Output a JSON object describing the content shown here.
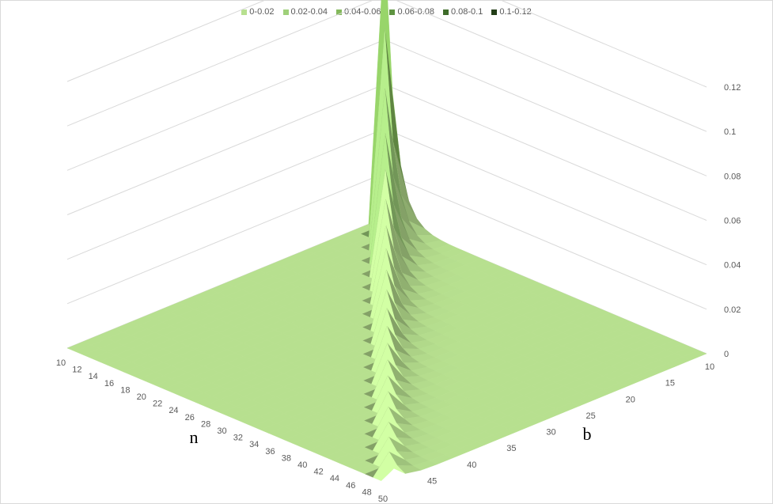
{
  "chart_data": {
    "type": "surface",
    "title": "",
    "xlabel": "n",
    "ylabel": "b",
    "zlabel": "",
    "x_ticks": [
      "10",
      "12",
      "14",
      "16",
      "18",
      "20",
      "22",
      "24",
      "26",
      "28",
      "30",
      "32",
      "34",
      "36",
      "38",
      "40",
      "42",
      "44",
      "46",
      "48",
      "50"
    ],
    "y_ticks": [
      "10",
      "15",
      "20",
      "25",
      "30",
      "35",
      "40",
      "45"
    ],
    "z_ticks": [
      "0",
      "0.02",
      "0.04",
      "0.06",
      "0.08",
      "0.1",
      "0.12"
    ],
    "zlim": [
      0,
      0.12
    ],
    "n_range": [
      10,
      50
    ],
    "b_range": [
      10,
      50
    ],
    "grid": true,
    "legend_position": "top",
    "legend": [
      {
        "label": "0-0.02",
        "color": "#b7e08f"
      },
      {
        "label": "0.02-0.04",
        "color": "#9fd07a"
      },
      {
        "label": "0.04-0.06",
        "color": "#84b95c"
      },
      {
        "label": "0.06-0.08",
        "color": "#5f9441"
      },
      {
        "label": "0.08-0.1",
        "color": "#3f6c2a"
      },
      {
        "label": "0.1-0.12",
        "color": "#233d17"
      }
    ],
    "series": [
      {
        "b": 10,
        "peak": 0.124
      },
      {
        "b": 12,
        "peak": 0.103
      },
      {
        "b": 14,
        "peak": 0.089
      },
      {
        "b": 16,
        "peak": 0.078
      },
      {
        "b": 18,
        "peak": 0.069
      },
      {
        "b": 20,
        "peak": 0.062
      },
      {
        "b": 22,
        "peak": 0.056
      },
      {
        "b": 24,
        "peak": 0.052
      },
      {
        "b": 26,
        "peak": 0.048
      },
      {
        "b": 28,
        "peak": 0.044
      },
      {
        "b": 30,
        "peak": 0.041
      },
      {
        "b": 32,
        "peak": 0.039
      },
      {
        "b": 34,
        "peak": 0.036
      },
      {
        "b": 36,
        "peak": 0.034
      },
      {
        "b": 38,
        "peak": 0.033
      },
      {
        "b": 40,
        "peak": 0.031
      },
      {
        "b": 42,
        "peak": 0.03
      },
      {
        "b": 44,
        "peak": 0.028
      },
      {
        "b": 46,
        "peak": 0.027
      },
      {
        "b": 48,
        "peak": 0.026
      },
      {
        "b": 50,
        "peak": 0.025
      }
    ]
  }
}
